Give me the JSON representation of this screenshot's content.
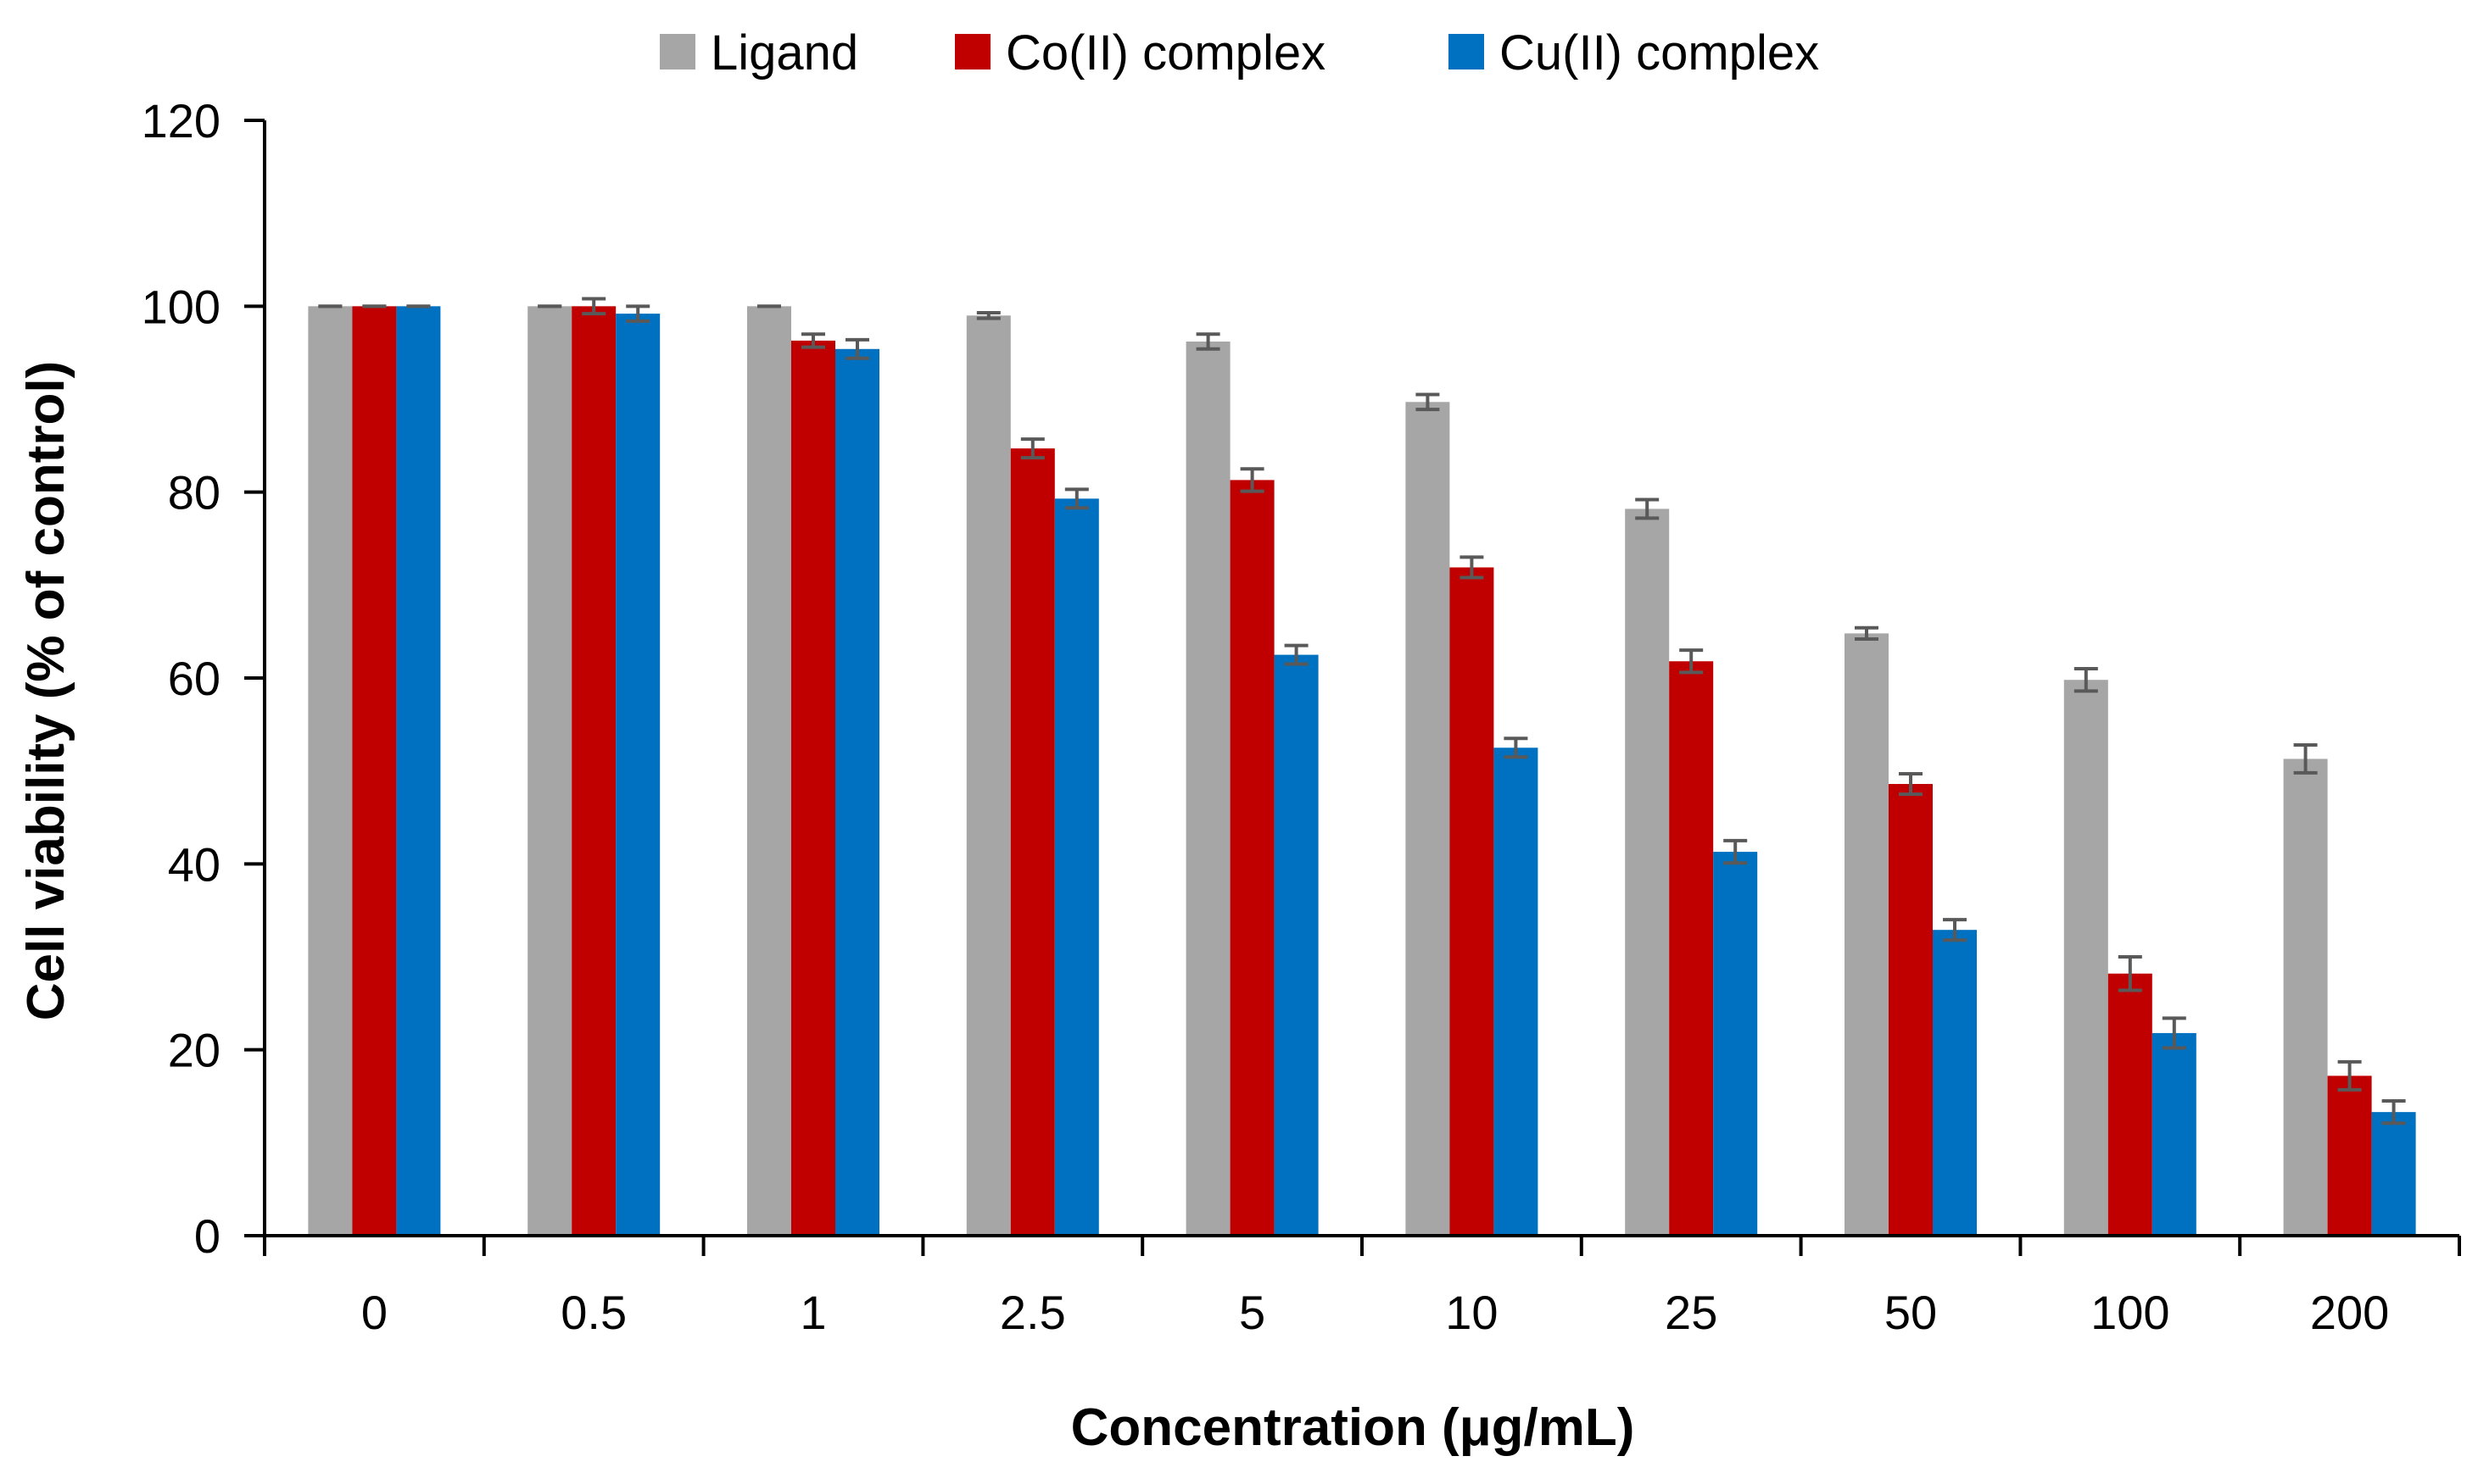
{
  "chart_data": {
    "type": "bar",
    "title": "",
    "xlabel": "Concentration (μg/mL)",
    "ylabel": "Cell viability (% of control)",
    "ylim": [
      0,
      120
    ],
    "yticks": [
      "0",
      "20",
      "40",
      "60",
      "80",
      "100",
      "120"
    ],
    "grid": false,
    "legend_position": "top-center",
    "categories": [
      "0",
      "0.5",
      "1",
      "2.5",
      "5",
      "10",
      "25",
      "50",
      "100",
      "200"
    ],
    "series": [
      {
        "name": "Ligand",
        "color": "#a6a6a6",
        "values": [
          100,
          100,
          100,
          99,
          96.2,
          89.7,
          78.2,
          64.8,
          59.8,
          51.3
        ],
        "errors": [
          0,
          0,
          0,
          0.3,
          0.8,
          0.8,
          1.0,
          0.6,
          1.2,
          1.5
        ]
      },
      {
        "name": "Co(II) complex",
        "color": "#c00000",
        "values": [
          100,
          100,
          96.3,
          84.7,
          81.3,
          71.9,
          61.8,
          48.6,
          28.2,
          17.2
        ],
        "errors": [
          0,
          0.8,
          0.7,
          1.0,
          1.2,
          1.1,
          1.2,
          1.1,
          1.8,
          1.5
        ]
      },
      {
        "name": "Cu(II) complex",
        "color": "#0070c0",
        "values": [
          100,
          99.2,
          95.4,
          79.3,
          62.5,
          52.5,
          41.3,
          32.9,
          21.8,
          13.3
        ],
        "errors": [
          0,
          0.8,
          1.0,
          1.0,
          1.0,
          1.0,
          1.2,
          1.1,
          1.6,
          1.2
        ]
      }
    ],
    "error_bar_color": "#595959",
    "axis_color": "#000000"
  }
}
